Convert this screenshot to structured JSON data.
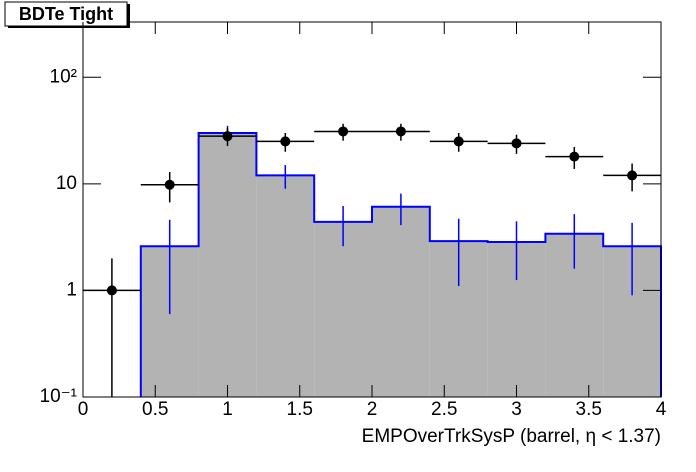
{
  "chart_data": {
    "type": "histogram",
    "title": "BDTe Tight",
    "xlabel": "EMPOverTrkSysP (barrel,   η < 1.37)",
    "bins": [
      0,
      0.4,
      0.8,
      1.2,
      1.6,
      2.0,
      2.4,
      2.8,
      3.2,
      3.6,
      4.0
    ],
    "histogram": {
      "color": "#0000ff",
      "fill": "#b3b3b3",
      "values": [
        0,
        2.6,
        30,
        12,
        4.4,
        6.1,
        2.9,
        2.85,
        3.4,
        2.6
      ],
      "errors": [
        0,
        2.0,
        5,
        3,
        1.8,
        2,
        1.8,
        1.6,
        1.8,
        1.7
      ]
    },
    "points": {
      "color": "#000000",
      "x": [
        0.2,
        0.6,
        1.0,
        1.4,
        1.8,
        2.2,
        2.6,
        3.0,
        3.4,
        3.8
      ],
      "values": [
        1,
        9.8,
        28,
        25,
        31,
        31,
        25,
        24,
        18,
        12
      ],
      "errors": [
        1,
        3.1,
        5.3,
        5,
        5.6,
        5.6,
        5,
        4.9,
        4.2,
        3.5
      ]
    },
    "xlim": [
      0,
      4
    ],
    "xticks": [
      0,
      0.5,
      1,
      1.5,
      2,
      2.5,
      3,
      3.5,
      4
    ],
    "ylim": [
      0.1,
      330
    ],
    "log_y": true,
    "yticks": [
      {
        "value": 0.1,
        "label": "10⁻¹"
      },
      1,
      10,
      {
        "value": 100,
        "label": "10²"
      }
    ]
  }
}
